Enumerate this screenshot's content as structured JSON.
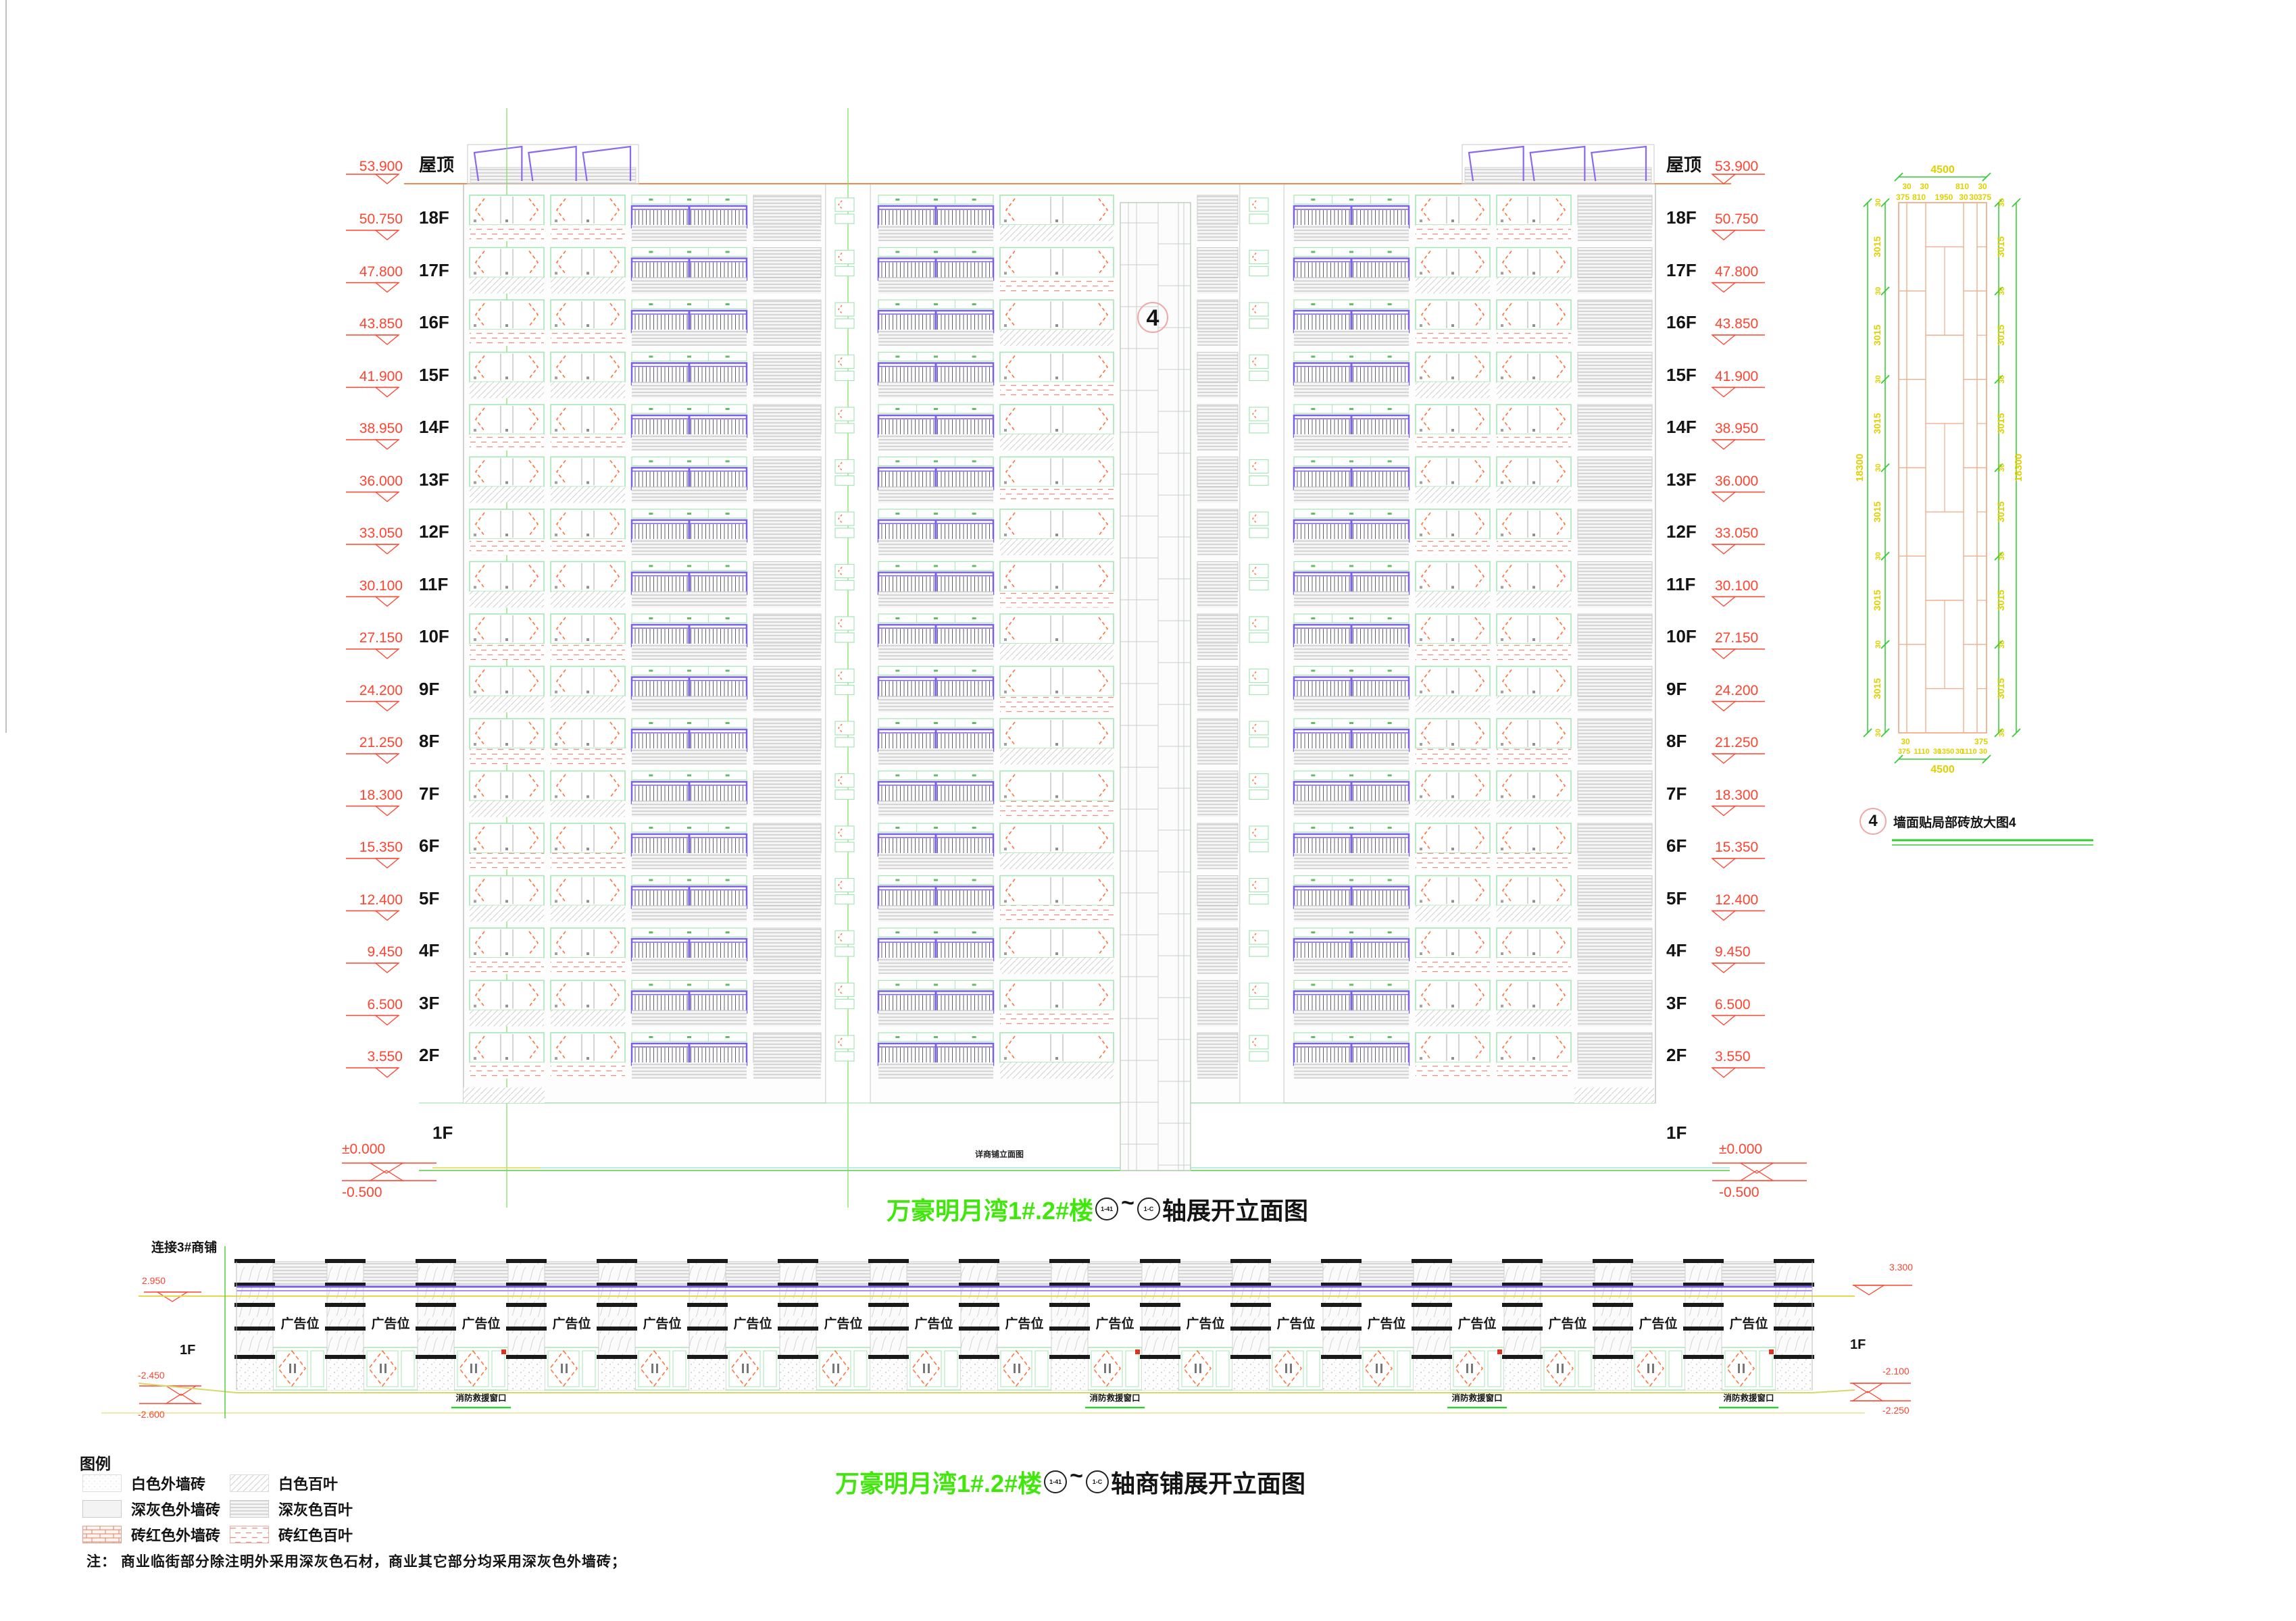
{
  "colors": {
    "marker_red": "#FF4430",
    "title_green": "#3FE80A",
    "dim_green": "#33CC33",
    "dim_yellow": "#E0D000",
    "railing_purple": "#7B5FE8",
    "chevron_orange": "#FF7038",
    "tile_orange": "#EFAF8D",
    "window_green": "#A5E6B5"
  },
  "main_elevation": {
    "levels": [
      {
        "floor": "屋顶",
        "elev": "53.900"
      },
      {
        "floor": "18F",
        "elev": "50.750"
      },
      {
        "floor": "17F",
        "elev": "47.800"
      },
      {
        "floor": "16F",
        "elev": "43.850"
      },
      {
        "floor": "15F",
        "elev": "41.900"
      },
      {
        "floor": "14F",
        "elev": "38.950"
      },
      {
        "floor": "13F",
        "elev": "36.000"
      },
      {
        "floor": "12F",
        "elev": "33.050"
      },
      {
        "floor": "11F",
        "elev": "30.100"
      },
      {
        "floor": "10F",
        "elev": "27.150"
      },
      {
        "floor": "9F",
        "elev": "24.200"
      },
      {
        "floor": "8F",
        "elev": "21.250"
      },
      {
        "floor": "7F",
        "elev": "18.300"
      },
      {
        "floor": "6F",
        "elev": "15.350"
      },
      {
        "floor": "5F",
        "elev": "12.400"
      },
      {
        "floor": "4F",
        "elev": "9.450"
      },
      {
        "floor": "3F",
        "elev": "6.500"
      },
      {
        "floor": "2F",
        "elev": "3.550"
      },
      {
        "floor": "1F",
        "elev": "±0.000"
      },
      {
        "floor": "",
        "elev": "-0.500"
      }
    ],
    "detail_ref": "4",
    "see_note": "详商铺立面图"
  },
  "main_title": {
    "project": "万豪明月湾1#.2#楼",
    "axis_start": "1-41",
    "tilde": "~",
    "axis_end": "1-C",
    "suffix": "轴展开立面图"
  },
  "shops_title": {
    "project": "万豪明月湾1#.2#楼",
    "axis_start": "1-41",
    "tilde": "~",
    "axis_end": "1-C",
    "suffix": "轴商铺展开立面图"
  },
  "shops_elevation": {
    "left": {
      "link": "连接3#商铺",
      "top_elev": "2.950",
      "floor": "1F",
      "mid_elev": "-2.450",
      "low_elev": "-2.600"
    },
    "right": {
      "top_elev": "3.300",
      "floor": "1F",
      "mid_elev": "-2.100",
      "low_elev": "-2.250"
    },
    "ad_label": "广告位",
    "ad_count": 17,
    "fire_label": "消防救援窗口"
  },
  "detail_view": {
    "ref_number": "4",
    "caption": "墙面贴局部砖放大图4",
    "total_width": "4500",
    "total_height": "18300",
    "top_dims_row2": [
      "30",
      "30",
      "810",
      "30"
    ],
    "top_dims_row3": [
      "375",
      "810",
      "1950",
      "30",
      "30",
      "375"
    ],
    "side_segment": "3015",
    "side_joint": "30",
    "bottom_dims_row1": [
      "30",
      "375"
    ],
    "bottom_dims_row2": [
      "375",
      "1110",
      "30",
      "1350",
      "30",
      "1110",
      "30"
    ]
  },
  "legend": {
    "title": "图例",
    "items": [
      {
        "label": "白色外墙砖",
        "swatch": "white-tile"
      },
      {
        "label": "深灰色外墙砖",
        "swatch": "grey-tile"
      },
      {
        "label": "砖红色外墙砖",
        "swatch": "brick-red-tile"
      },
      {
        "label": "白色百叶",
        "swatch": "white-louver"
      },
      {
        "label": "深灰色百叶",
        "swatch": "grey-louver"
      },
      {
        "label": "砖红色百叶",
        "swatch": "brick-red-louver"
      }
    ]
  },
  "note": "注：  商业临街部分除注明外采用深灰色石材，商业其它部分均采用深灰色外墙砖；"
}
